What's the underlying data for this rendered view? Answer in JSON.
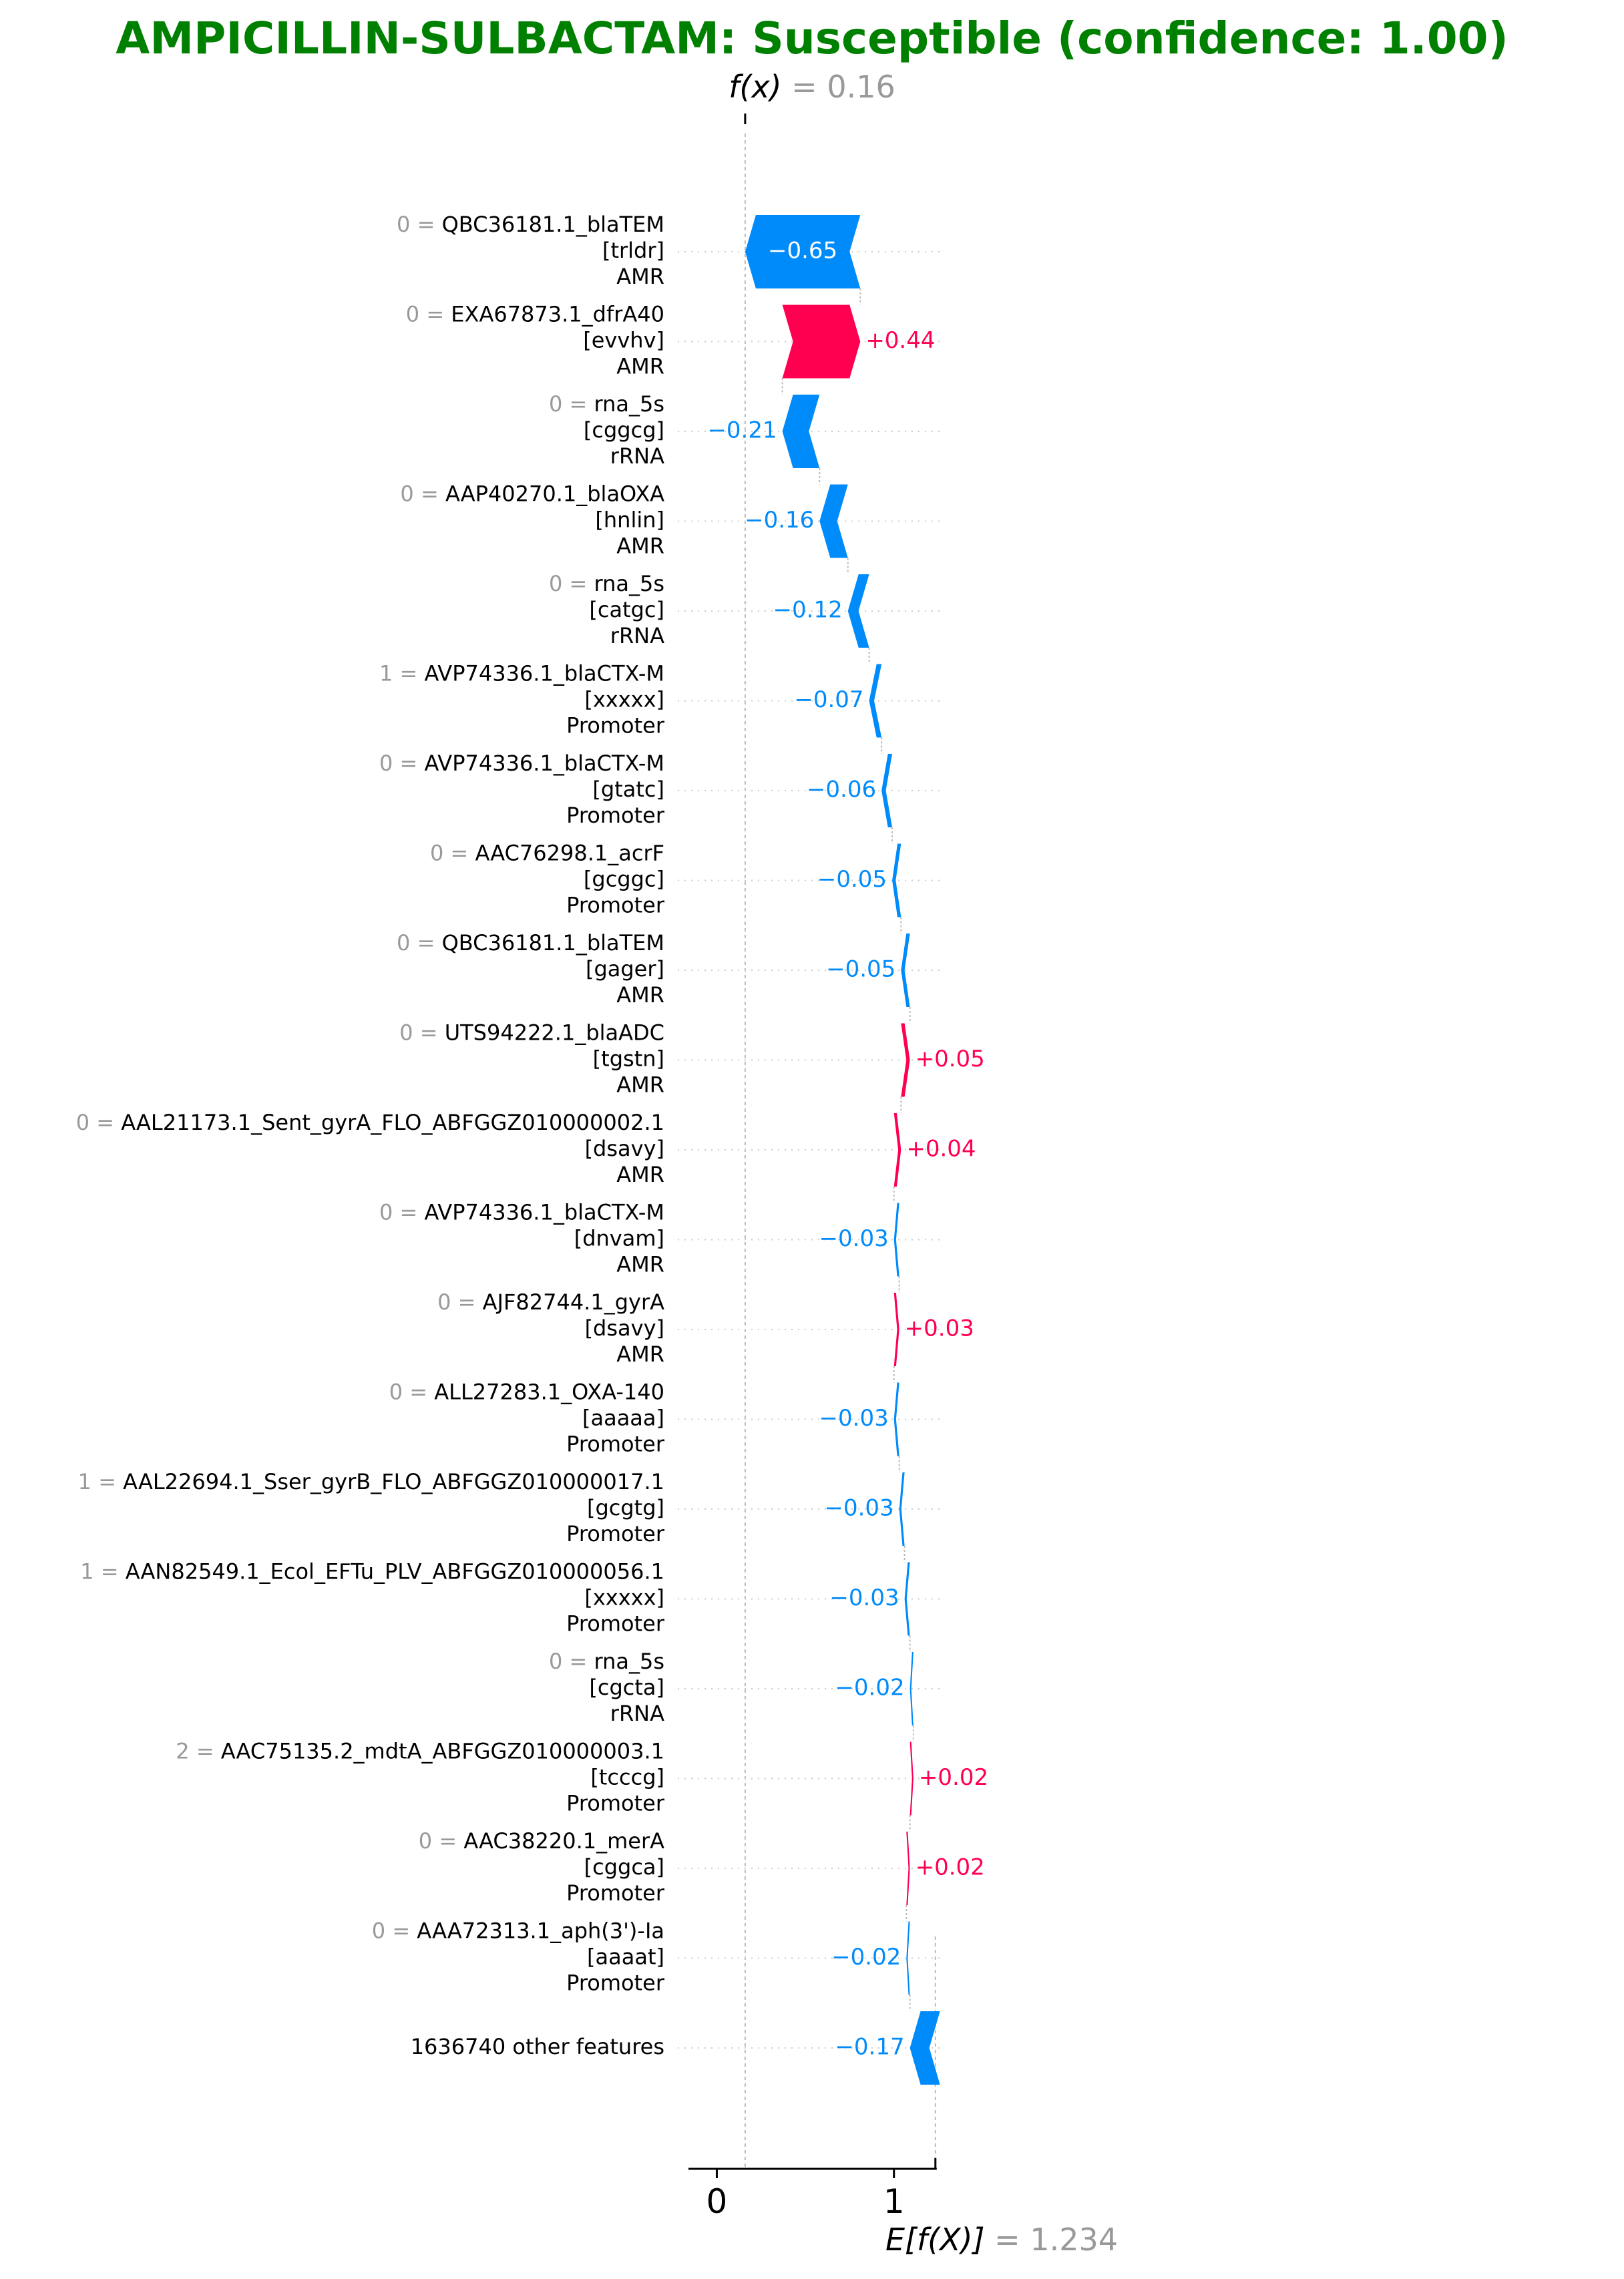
{
  "title": "AMPICILLIN-SULBACTAM: Susceptible (confidence: 1.00)",
  "colors": {
    "title": "#008000",
    "negative": "#008bfb",
    "positive": "#ff0051",
    "muted": "#999999",
    "text": "#000000",
    "bar_label": "#ffffff"
  },
  "chart_data": {
    "type": "waterfall",
    "fx_label": "f(x)",
    "fx_value": "0.16",
    "ex_label": "E[f(X)]",
    "ex_value": "1.234",
    "base_value": 1.234,
    "output_value": 0.16,
    "xlim": [
      -0.16,
      1.28
    ],
    "xticks": [
      {
        "value": 0,
        "label": "0"
      },
      {
        "value": 1,
        "label": "1"
      }
    ],
    "features": [
      {
        "value": "0",
        "lines": [
          "QBC36181.1_blaTEM",
          "[trldr]",
          "AMR"
        ],
        "shap": -0.65,
        "label": "−0.65"
      },
      {
        "value": "0",
        "lines": [
          "EXA67873.1_dfrA40",
          "[evvhv]",
          "AMR"
        ],
        "shap": 0.44,
        "label": "+0.44"
      },
      {
        "value": "0",
        "lines": [
          "rna_5s",
          "[cggcg]",
          "rRNA"
        ],
        "shap": -0.21,
        "label": "−0.21"
      },
      {
        "value": "0",
        "lines": [
          "AAP40270.1_blaOXA",
          "[hnlin]",
          "AMR"
        ],
        "shap": -0.16,
        "label": "−0.16"
      },
      {
        "value": "0",
        "lines": [
          "rna_5s",
          "[catgc]",
          "rRNA"
        ],
        "shap": -0.12,
        "label": "−0.12"
      },
      {
        "value": "1",
        "lines": [
          "AVP74336.1_blaCTX-M",
          "[xxxxx]",
          "Promoter"
        ],
        "shap": -0.07,
        "label": "−0.07"
      },
      {
        "value": "0",
        "lines": [
          "AVP74336.1_blaCTX-M",
          "[gtatc]",
          "Promoter"
        ],
        "shap": -0.06,
        "label": "−0.06"
      },
      {
        "value": "0",
        "lines": [
          "AAC76298.1_acrF",
          "[gcggc]",
          "Promoter"
        ],
        "shap": -0.05,
        "label": "−0.05"
      },
      {
        "value": "0",
        "lines": [
          "QBC36181.1_blaTEM",
          "[gager]",
          "AMR"
        ],
        "shap": -0.05,
        "label": "−0.05"
      },
      {
        "value": "0",
        "lines": [
          "UTS94222.1_blaADC",
          "[tgstn]",
          "AMR"
        ],
        "shap": 0.05,
        "label": "+0.05"
      },
      {
        "value": "0",
        "lines": [
          "AAL21173.1_Sent_gyrA_FLO_ABFGGZ010000002.1",
          "[dsavy]",
          "AMR"
        ],
        "shap": 0.04,
        "label": "+0.04"
      },
      {
        "value": "0",
        "lines": [
          "AVP74336.1_blaCTX-M",
          "[dnvam]",
          "AMR"
        ],
        "shap": -0.03,
        "label": "−0.03"
      },
      {
        "value": "0",
        "lines": [
          "AJF82744.1_gyrA",
          "[dsavy]",
          "AMR"
        ],
        "shap": 0.03,
        "label": "+0.03"
      },
      {
        "value": "0",
        "lines": [
          "ALL27283.1_OXA-140",
          "[aaaaa]",
          "Promoter"
        ],
        "shap": -0.03,
        "label": "−0.03"
      },
      {
        "value": "1",
        "lines": [
          "AAL22694.1_Sser_gyrB_FLO_ABFGGZ010000017.1",
          "[gcgtg]",
          "Promoter"
        ],
        "shap": -0.03,
        "label": "−0.03"
      },
      {
        "value": "1",
        "lines": [
          "AAN82549.1_Ecol_EFTu_PLV_ABFGGZ010000056.1",
          "[xxxxx]",
          "Promoter"
        ],
        "shap": -0.03,
        "label": "−0.03"
      },
      {
        "value": "0",
        "lines": [
          "rna_5s",
          "[cgcta]",
          "rRNA"
        ],
        "shap": -0.02,
        "label": "−0.02"
      },
      {
        "value": "2",
        "lines": [
          "AAC75135.2_mdtA_ABFGGZ010000003.1",
          "[tcccg]",
          "Promoter"
        ],
        "shap": 0.02,
        "label": "+0.02"
      },
      {
        "value": "0",
        "lines": [
          "AAC38220.1_merA",
          "[cggca]",
          "Promoter"
        ],
        "shap": 0.02,
        "label": "+0.02"
      },
      {
        "value": "0",
        "lines": [
          "AAA72313.1_aph(3')-Ia",
          "[aaaat]",
          "Promoter"
        ],
        "shap": -0.02,
        "label": "−0.02"
      },
      {
        "value": "",
        "lines": [
          "1636740 other features"
        ],
        "shap": -0.17,
        "label": "−0.17"
      }
    ]
  }
}
